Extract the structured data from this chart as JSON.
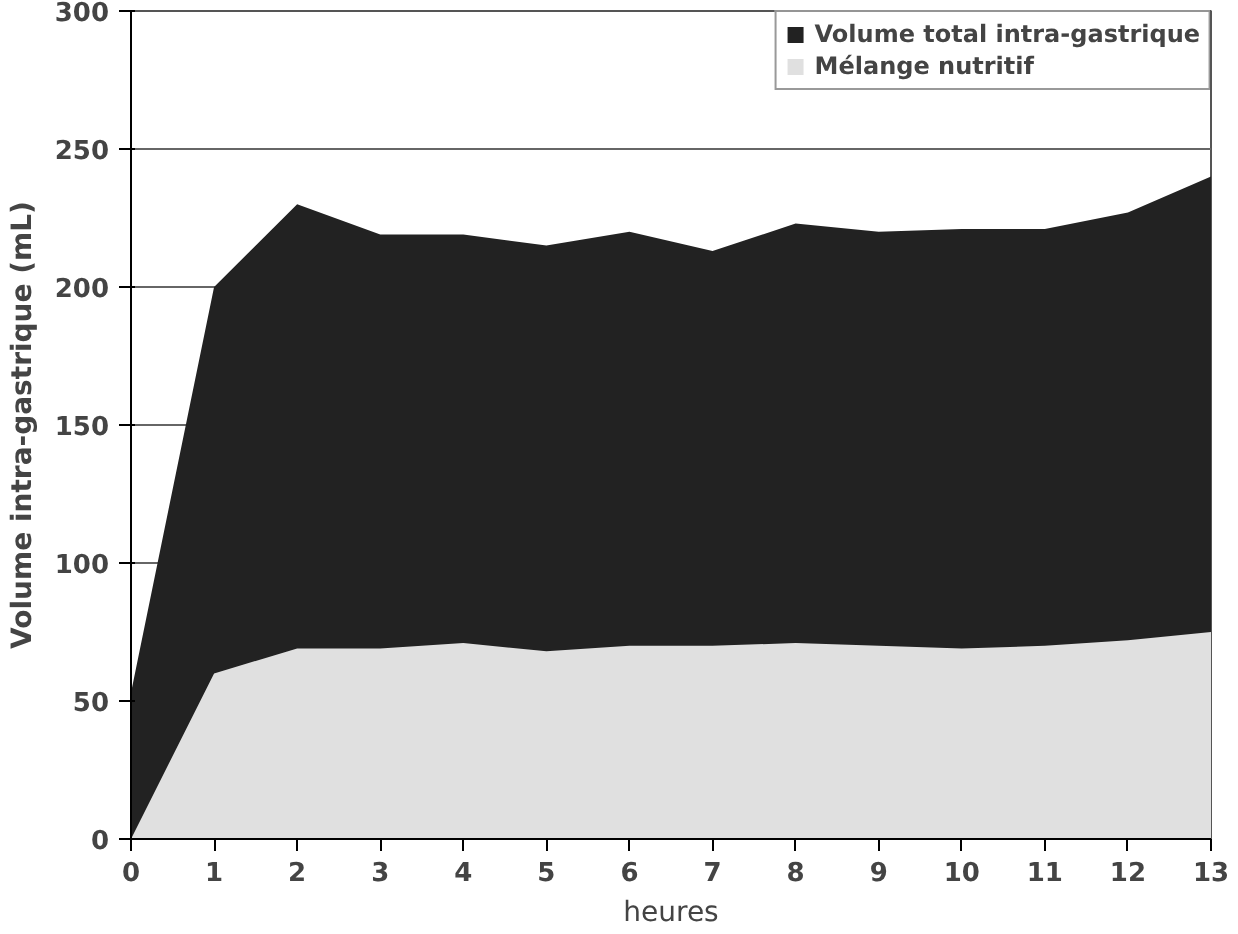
{
  "chart_data": {
    "type": "area",
    "xlabel": "heures",
    "ylabel": "Volume intra-gastrique (mL)",
    "x": [
      0,
      1,
      2,
      3,
      4,
      5,
      6,
      7,
      8,
      9,
      10,
      11,
      12,
      13
    ],
    "series": [
      {
        "name": "Volume total intra-gastrique",
        "color": "#222222",
        "values": [
          53,
          200,
          230,
          219,
          219,
          215,
          220,
          213,
          223,
          220,
          221,
          221,
          227,
          240
        ]
      },
      {
        "name": "Mélange nutritif",
        "color": "#e0e0e0",
        "values": [
          0,
          60,
          69,
          69,
          71,
          68,
          70,
          70,
          71,
          70,
          69,
          70,
          72,
          75
        ]
      }
    ],
    "xlim": [
      0,
      13
    ],
    "ylim": [
      0,
      300
    ],
    "xticks": [
      0,
      1,
      2,
      3,
      4,
      5,
      6,
      7,
      8,
      9,
      10,
      11,
      12,
      13
    ],
    "yticks": [
      0,
      50,
      100,
      150,
      200,
      250,
      300
    ],
    "grid": "y",
    "legend": "top right"
  }
}
